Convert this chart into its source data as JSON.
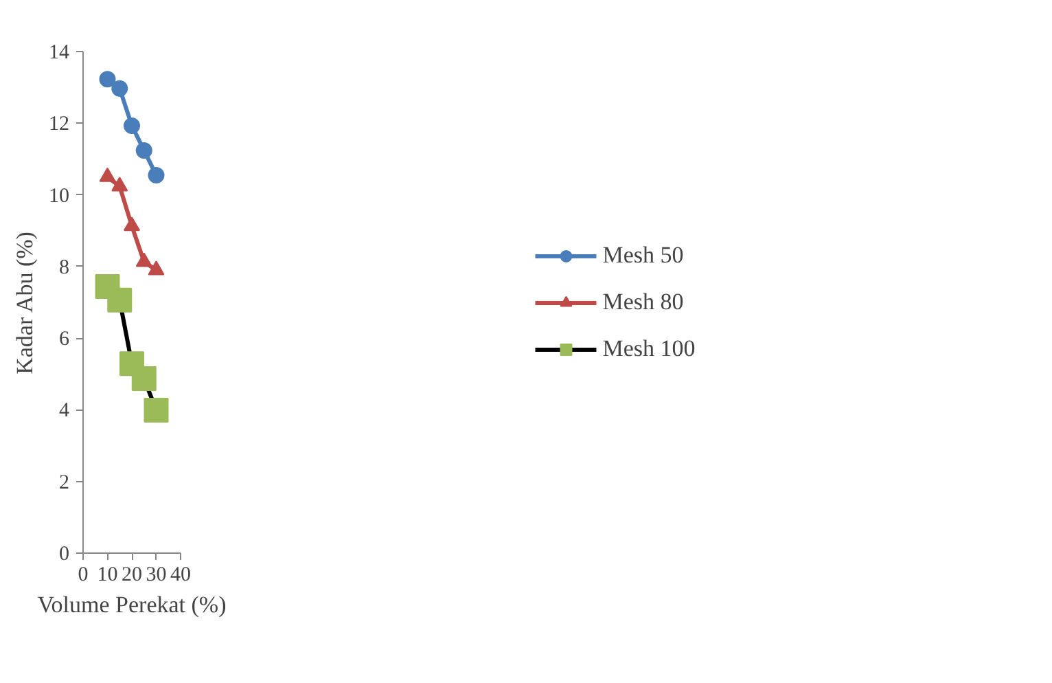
{
  "chart_data": {
    "type": "line",
    "xlabel": "Volume Perekat (%)",
    "ylabel": "Kadar Abu (%)",
    "x": [
      10,
      15,
      20,
      25,
      30
    ],
    "xlim": [
      0,
      40
    ],
    "xticks": [
      0,
      10,
      20,
      30,
      40
    ],
    "ylim": [
      0,
      14
    ],
    "yticks": [
      0,
      2,
      4,
      6,
      8,
      10,
      12,
      14
    ],
    "grid": false,
    "legend": "right",
    "series": [
      {
        "name": "Mesh 50",
        "color": "#4a7ebb",
        "marker": "circle",
        "values": [
          13.23,
          12.97,
          11.93,
          11.24,
          10.55
        ]
      },
      {
        "name": "Mesh 80",
        "color": "#be4b48",
        "marker": "triangle",
        "values": [
          10.5,
          10.24,
          9.13,
          8.13,
          7.9
        ]
      },
      {
        "name": "Mesh 100",
        "color": "#000000",
        "colors": [
          "#9bbb59",
          "#9bbb59",
          "#9bbb59",
          "#9bbb59",
          "#9bbb59"
        ],
        "marker": "square",
        "values": [
          7.44,
          7.06,
          5.29,
          4.87,
          3.99
        ]
      }
    ]
  }
}
